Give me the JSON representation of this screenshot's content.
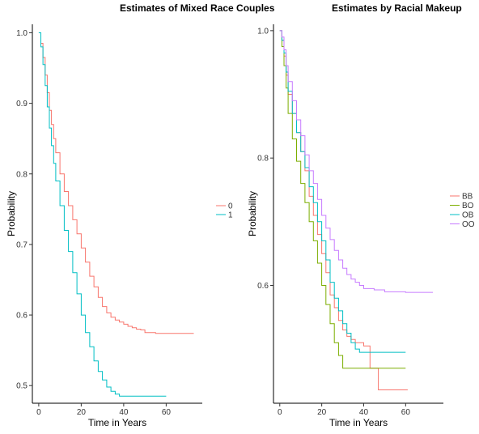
{
  "chart_data": [
    {
      "type": "line",
      "step": true,
      "title": "Estimates of Mixed Race Couples",
      "xlabel": "Time in Years",
      "ylabel": "Probability",
      "xlim": [
        -3,
        77
      ],
      "ylim": [
        0.475,
        1.012
      ],
      "xticks": [
        0,
        20,
        40,
        60
      ],
      "yticks": [
        0.5,
        0.6,
        0.7,
        0.8,
        0.9,
        1.0
      ],
      "ytick_labels": [
        "0.5",
        "0.6",
        "0.7",
        "0.8",
        "0.9",
        "1.0"
      ],
      "grid": false,
      "legend": "right",
      "series": [
        {
          "name": "0",
          "color": "#F8766D",
          "x": [
            0,
            1,
            2,
            3,
            4,
            5,
            6,
            7,
            8,
            10,
            12,
            14,
            16,
            18,
            20,
            22,
            24,
            26,
            28,
            30,
            32,
            34,
            36,
            38,
            40,
            42,
            44,
            46,
            48,
            50,
            55,
            60,
            73
          ],
          "y": [
            1.0,
            0.985,
            0.965,
            0.94,
            0.915,
            0.89,
            0.87,
            0.85,
            0.83,
            0.8,
            0.775,
            0.755,
            0.735,
            0.715,
            0.695,
            0.675,
            0.655,
            0.64,
            0.625,
            0.612,
            0.603,
            0.597,
            0.593,
            0.59,
            0.587,
            0.584,
            0.582,
            0.58,
            0.579,
            0.575,
            0.574,
            0.574,
            0.574
          ]
        },
        {
          "name": "1",
          "color": "#00BFC4",
          "x": [
            0,
            1,
            2,
            3,
            4,
            5,
            6,
            7,
            8,
            10,
            12,
            14,
            16,
            18,
            20,
            22,
            24,
            26,
            28,
            30,
            32,
            34,
            36,
            38,
            40,
            45,
            50,
            60
          ],
          "y": [
            1.0,
            0.98,
            0.955,
            0.925,
            0.895,
            0.865,
            0.84,
            0.815,
            0.79,
            0.755,
            0.72,
            0.69,
            0.66,
            0.63,
            0.6,
            0.575,
            0.555,
            0.535,
            0.52,
            0.508,
            0.498,
            0.492,
            0.488,
            0.485,
            0.485,
            0.485,
            0.485,
            0.485
          ]
        }
      ]
    },
    {
      "type": "line",
      "step": true,
      "title": "Estimates by Racial Makeup",
      "xlabel": "Time in Years",
      "ylabel": "Probability",
      "xlim": [
        -3,
        78
      ],
      "ylim": [
        0.415,
        1.01
      ],
      "xticks": [
        0,
        20,
        40,
        60
      ],
      "yticks": [
        0.6,
        0.8,
        1.0
      ],
      "ytick_labels": [
        "0.6",
        "0.8",
        "1.0"
      ],
      "grid": false,
      "legend": "right",
      "series": [
        {
          "name": "BB",
          "color": "#F8766D",
          "x": [
            0,
            1,
            2,
            3,
            4,
            6,
            8,
            10,
            12,
            14,
            16,
            18,
            20,
            22,
            24,
            26,
            28,
            30,
            32,
            34,
            36,
            38,
            40,
            43,
            47,
            55,
            61
          ],
          "y": [
            1.0,
            0.985,
            0.96,
            0.93,
            0.9,
            0.87,
            0.84,
            0.81,
            0.78,
            0.74,
            0.71,
            0.68,
            0.65,
            0.62,
            0.585,
            0.565,
            0.545,
            0.53,
            0.52,
            0.515,
            0.51,
            0.51,
            0.505,
            0.47,
            0.436,
            0.436,
            0.436
          ]
        },
        {
          "name": "BO",
          "color": "#7CAE00",
          "x": [
            0,
            1,
            2,
            3,
            4,
            6,
            8,
            10,
            12,
            14,
            16,
            18,
            20,
            22,
            24,
            26,
            28,
            30,
            32,
            40,
            50,
            60
          ],
          "y": [
            1.0,
            0.975,
            0.945,
            0.91,
            0.87,
            0.83,
            0.795,
            0.76,
            0.73,
            0.7,
            0.67,
            0.635,
            0.6,
            0.57,
            0.54,
            0.51,
            0.49,
            0.47,
            0.47,
            0.47,
            0.47,
            0.47
          ]
        },
        {
          "name": "OB",
          "color": "#00BFC4",
          "x": [
            0,
            1,
            2,
            3,
            4,
            6,
            8,
            10,
            12,
            14,
            16,
            18,
            20,
            22,
            24,
            26,
            28,
            30,
            32,
            34,
            36,
            38,
            40,
            45,
            50,
            60
          ],
          "y": [
            1.0,
            0.985,
            0.965,
            0.935,
            0.905,
            0.87,
            0.84,
            0.81,
            0.785,
            0.755,
            0.73,
            0.7,
            0.67,
            0.64,
            0.605,
            0.58,
            0.56,
            0.54,
            0.525,
            0.51,
            0.5,
            0.495,
            0.495,
            0.495,
            0.495,
            0.495
          ]
        },
        {
          "name": "OO",
          "color": "#C77CFF",
          "x": [
            0,
            1,
            2,
            3,
            4,
            6,
            8,
            10,
            12,
            14,
            16,
            18,
            20,
            22,
            24,
            26,
            28,
            30,
            32,
            34,
            36,
            38,
            40,
            45,
            50,
            60,
            73
          ],
          "y": [
            1.0,
            0.99,
            0.97,
            0.945,
            0.92,
            0.89,
            0.86,
            0.835,
            0.805,
            0.78,
            0.76,
            0.735,
            0.71,
            0.69,
            0.672,
            0.655,
            0.64,
            0.627,
            0.617,
            0.61,
            0.605,
            0.6,
            0.595,
            0.593,
            0.59,
            0.589,
            0.589
          ]
        }
      ]
    }
  ]
}
